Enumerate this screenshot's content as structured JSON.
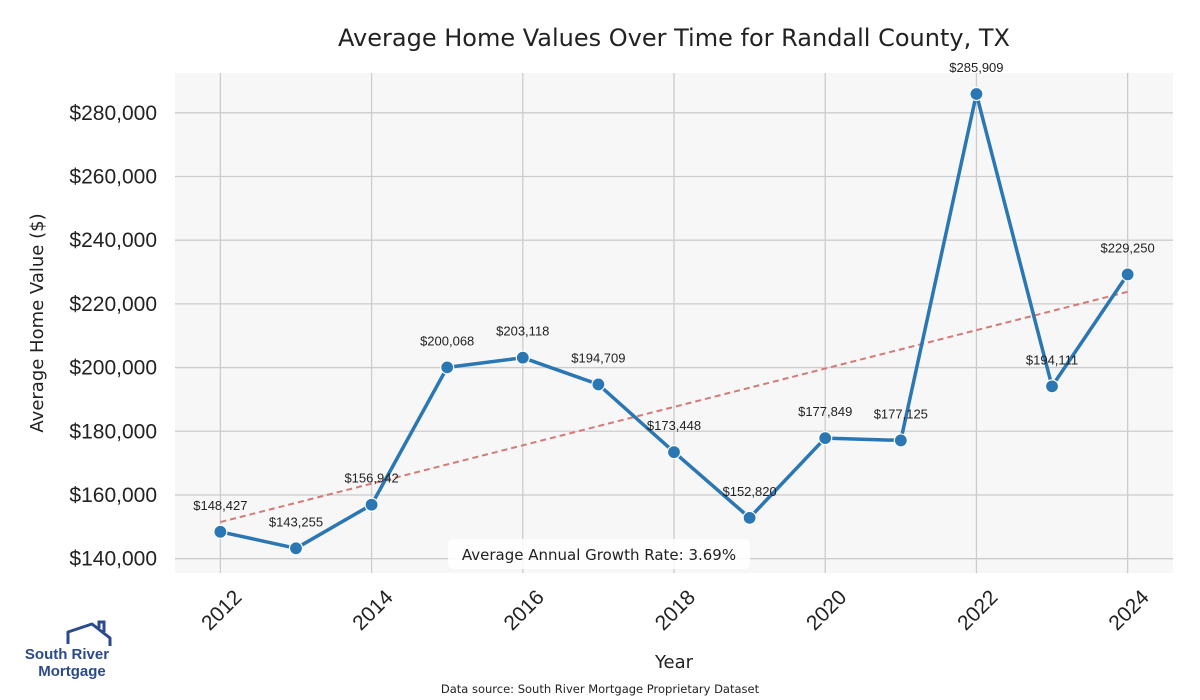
{
  "chart_data": {
    "type": "line",
    "title": "Average Home Values Over Time for Randall County, TX",
    "xlabel": "Year",
    "ylabel": "Average Home Value ($)",
    "x": [
      2012,
      2013,
      2014,
      2015,
      2016,
      2017,
      2018,
      2019,
      2020,
      2021,
      2022,
      2023,
      2024
    ],
    "series": [
      {
        "name": "Average Home Value",
        "values": [
          148427,
          143255,
          156942,
          200068,
          203118,
          194709,
          173448,
          152820,
          177849,
          177125,
          285909,
          194111,
          229250
        ],
        "labels": [
          "$148,427",
          "$143,255",
          "$156,942",
          "$200,068",
          "$203,118",
          "$194,709",
          "$173,448",
          "$152,820",
          "$177,849",
          "$177,125",
          "$285,909",
          "$194,111",
          "$229,250"
        ],
        "color": "#2a77b4"
      },
      {
        "name": "Trend",
        "style": "dashed",
        "values_start_end": [
          151500,
          223800
        ],
        "color": "#d47a78"
      }
    ],
    "x_ticks": [
      2012,
      2014,
      2016,
      2018,
      2020,
      2022,
      2024
    ],
    "x_tick_labels": [
      "2012",
      "2014",
      "2016",
      "2018",
      "2020",
      "2022",
      "2024"
    ],
    "y_ticks": [
      140000,
      160000,
      180000,
      200000,
      220000,
      240000,
      260000,
      280000
    ],
    "y_tick_labels": [
      "$140,000",
      "$160,000",
      "$180,000",
      "$200,000",
      "$220,000",
      "$240,000",
      "$260,000",
      "$280,000"
    ],
    "xlim": [
      2011.4,
      2024.6
    ],
    "ylim": [
      135500,
      292500
    ],
    "grid": true,
    "annotation": "Average Annual Growth Rate: 3.69%"
  },
  "logo": {
    "line1": "South River",
    "line2": "Mortgage"
  },
  "source": "Data source: South River Mortgage Proprietary Dataset",
  "colors": {
    "plot_bg": "#f7f7f7",
    "grid": "#cccccc",
    "line": "#2a77b4",
    "trend": "#d47a78",
    "logo": "#2b4a8c"
  }
}
